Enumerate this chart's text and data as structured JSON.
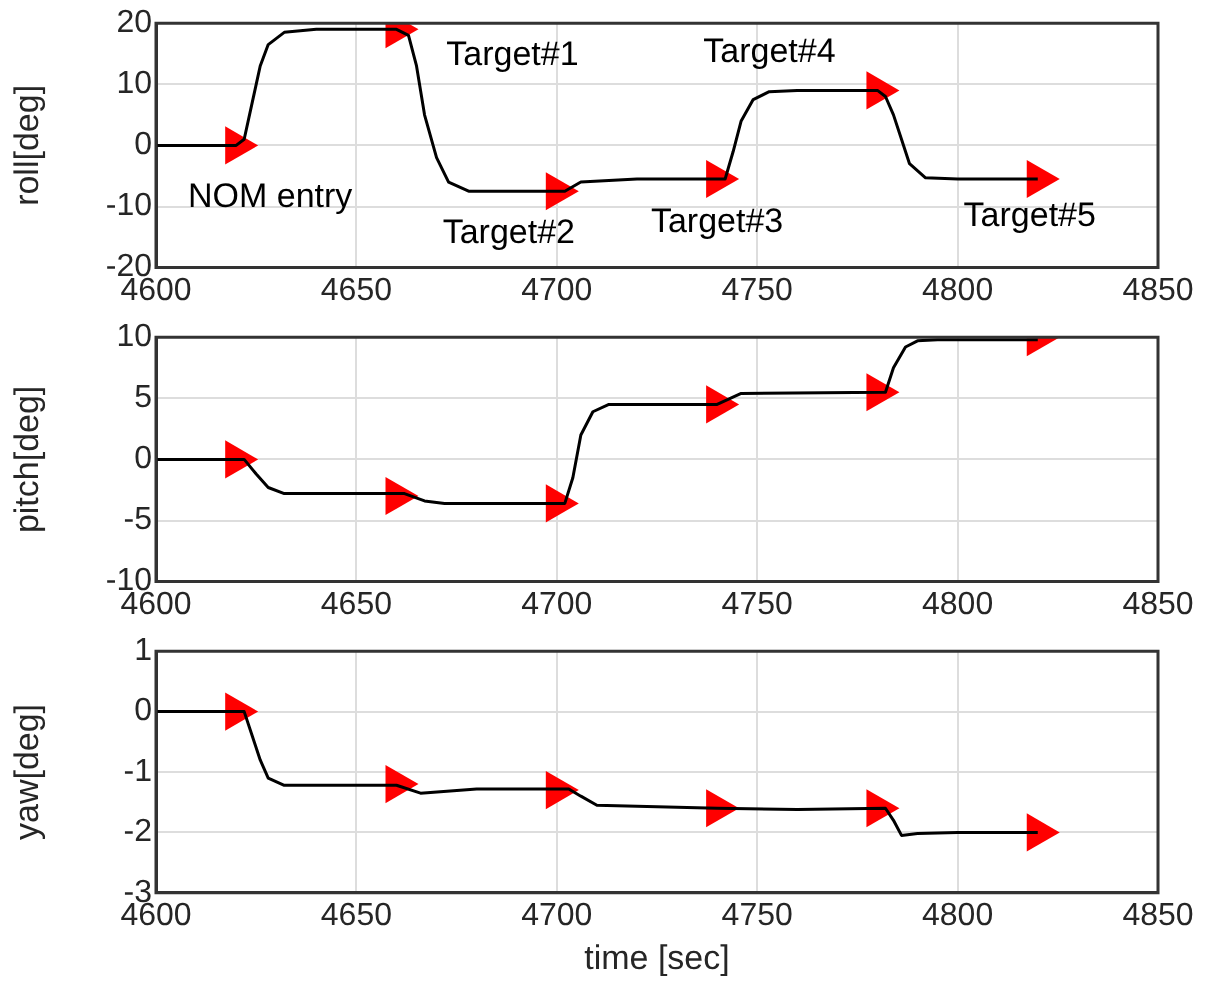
{
  "chart_data": [
    {
      "type": "line",
      "ylabel": "roll[deg]",
      "xlim": [
        4600,
        4850
      ],
      "xticks": [
        4600,
        4650,
        4700,
        4750,
        4800,
        4850
      ],
      "ylim": [
        -20,
        20
      ],
      "yticks": [
        -20,
        -10,
        0,
        10,
        20
      ],
      "grid": true,
      "series": [
        {
          "color": "#000000",
          "marker": "none",
          "x": [
            4600,
            4620,
            4622,
            4624,
            4626,
            4628,
            4632,
            4640,
            4660,
            4663,
            4665,
            4667,
            4670,
            4673,
            4678,
            4690,
            4702,
            4706,
            4720,
            4742,
            4744,
            4746,
            4749,
            4753,
            4760,
            4780,
            4782,
            4784,
            4786,
            4788,
            4792,
            4800,
            4820
          ],
          "values": [
            0,
            0,
            1,
            7,
            13,
            16.5,
            18.5,
            19,
            19,
            18,
            13,
            5,
            -2,
            -6,
            -7.5,
            -7.5,
            -7.5,
            -6,
            -5.5,
            -5.5,
            -1,
            4,
            7.5,
            8.8,
            9,
            9,
            8,
            5,
            1,
            -3,
            -5.3,
            -5.5,
            -5.5
          ]
        },
        {
          "type": "scatter",
          "color": "#ff0000",
          "marker": "triangle",
          "x": [
            4620,
            4660,
            4700,
            4740,
            4780,
            4820
          ],
          "values": [
            0,
            19,
            -7.5,
            -5.5,
            9,
            -5.5
          ]
        }
      ],
      "annotations": [
        {
          "text": "NOM entry",
          "x": 4620,
          "y": 0
        },
        {
          "text": "Target#1",
          "x": 4660,
          "y": 19
        },
        {
          "text": "Target#2",
          "x": 4700,
          "y": -7.5
        },
        {
          "text": "Target#3",
          "x": 4740,
          "y": -5.5
        },
        {
          "text": "Target#4",
          "x": 4780,
          "y": 9
        },
        {
          "text": "Target#5",
          "x": 4820,
          "y": -5.5
        }
      ]
    },
    {
      "type": "line",
      "ylabel": "pitch[deg]",
      "xlim": [
        4600,
        4850
      ],
      "xticks": [
        4600,
        4650,
        4700,
        4750,
        4800,
        4850
      ],
      "ylim": [
        -10,
        10
      ],
      "yticks": [
        -10,
        -5,
        0,
        5,
        10
      ],
      "grid": true,
      "series": [
        {
          "color": "#000000",
          "marker": "none",
          "x": [
            4600,
            4622,
            4625,
            4628,
            4632,
            4662,
            4667,
            4672,
            4702,
            4704,
            4706,
            4709,
            4713,
            4740,
            4746,
            4782,
            4784,
            4787,
            4790,
            4795,
            4820
          ],
          "values": [
            0,
            0,
            -1.2,
            -2.3,
            -2.8,
            -2.8,
            -3.4,
            -3.6,
            -3.6,
            -1.5,
            2,
            3.9,
            4.5,
            4.5,
            5.4,
            5.5,
            7.5,
            9.2,
            9.7,
            9.8,
            9.8
          ]
        },
        {
          "type": "scatter",
          "color": "#ff0000",
          "marker": "triangle",
          "x": [
            4620,
            4660,
            4700,
            4740,
            4780,
            4820
          ],
          "values": [
            0,
            -3,
            -3.6,
            4.5,
            5.5,
            10
          ]
        }
      ]
    },
    {
      "type": "line",
      "xlabel": "time [sec]",
      "ylabel": "yaw[deg]",
      "xlim": [
        4600,
        4850
      ],
      "xticks": [
        4600,
        4650,
        4700,
        4750,
        4800,
        4850
      ],
      "ylim": [
        -3,
        1
      ],
      "yticks": [
        -3,
        -2,
        -1,
        0,
        1
      ],
      "grid": true,
      "series": [
        {
          "color": "#000000",
          "marker": "none",
          "x": [
            4600,
            4622,
            4624,
            4626,
            4628,
            4632,
            4660,
            4666,
            4680,
            4703,
            4706,
            4710,
            4740,
            4760,
            4782,
            4784,
            4786,
            4790,
            4800,
            4820
          ],
          "values": [
            0,
            0,
            -0.4,
            -0.8,
            -1.1,
            -1.22,
            -1.22,
            -1.35,
            -1.28,
            -1.28,
            -1.4,
            -1.55,
            -1.6,
            -1.62,
            -1.6,
            -1.8,
            -2.05,
            -2.02,
            -2,
            -2
          ]
        },
        {
          "type": "scatter",
          "color": "#ff0000",
          "marker": "triangle",
          "x": [
            4620,
            4660,
            4700,
            4740,
            4780,
            4820
          ],
          "values": [
            0,
            -1.2,
            -1.3,
            -1.6,
            -1.6,
            -2
          ]
        }
      ]
    }
  ]
}
